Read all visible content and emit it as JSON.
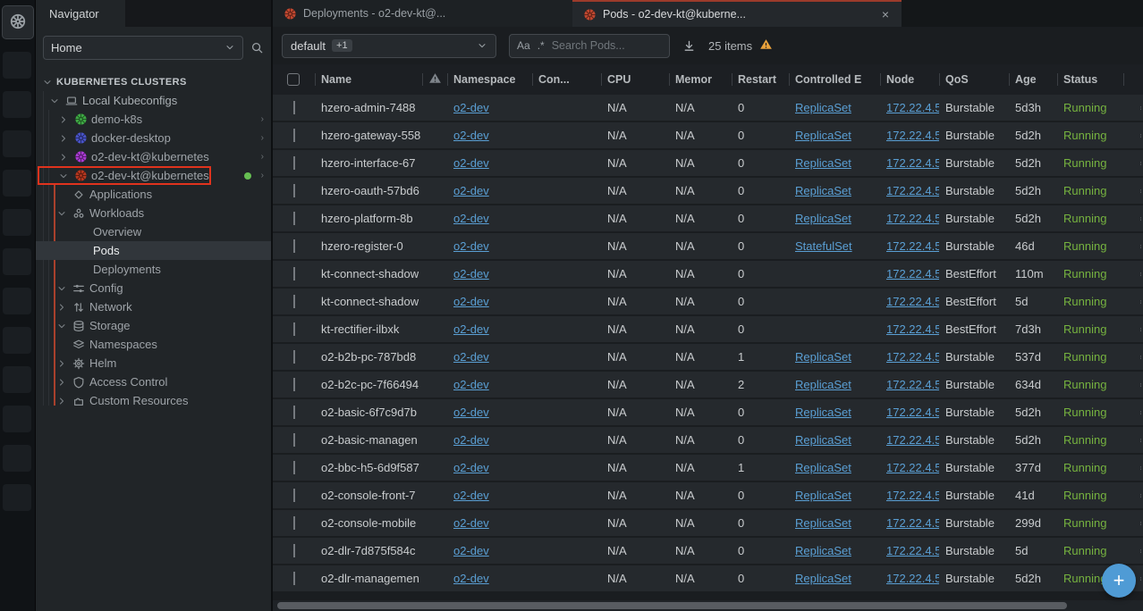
{
  "hotbar": {
    "active_item_icon": "kubernetes-logo",
    "slot_count": 12
  },
  "sidebar": {
    "tab_label": "Navigator",
    "home_select_value": "Home",
    "tree": [
      {
        "level": 0,
        "chevron": "down",
        "icon": "",
        "label": "KUBERNETES CLUSTERS"
      },
      {
        "level": 1,
        "chevron": "down",
        "icon": "laptop-icon",
        "label": "Local Kubeconfigs"
      },
      {
        "level": 2,
        "chevron": "right",
        "icon": "kubernetes-wheel-icon",
        "icon_color": "#3ea844",
        "label": "demo-k8s",
        "trailing_chevron": true
      },
      {
        "level": 2,
        "chevron": "right",
        "icon": "kubernetes-wheel-icon",
        "icon_color": "#4853c6",
        "label": "docker-desktop",
        "trailing_chevron": true
      },
      {
        "level": 2,
        "chevron": "right",
        "icon": "kubernetes-wheel-icon",
        "icon_color": "#a93ad2",
        "label": "o2-dev-kt@kubernetes",
        "trailing_chevron": true
      },
      {
        "level": 2,
        "chevron": "down",
        "icon": "kubernetes-wheel-icon",
        "icon_color": "#b5371f",
        "label": "o2-dev-kt@kubernetes",
        "boxed": true,
        "status_dot": true,
        "trailing_chevron": true
      },
      {
        "level": 3,
        "chevron": "",
        "icon": "applications-icon",
        "label": "Applications"
      },
      {
        "level": 3,
        "chevron": "down",
        "icon": "workloads-icon",
        "label": "Workloads"
      },
      {
        "level": 4,
        "chevron": "",
        "icon": "",
        "label": "Overview"
      },
      {
        "level": 4,
        "chevron": "",
        "icon": "",
        "label": "Pods",
        "selected": true
      },
      {
        "level": 4,
        "chevron": "",
        "icon": "",
        "label": "Deployments"
      },
      {
        "level": 3,
        "chevron": "down",
        "icon": "config-icon",
        "label": "Config"
      },
      {
        "level": 3,
        "chevron": "right",
        "icon": "network-icon",
        "label": "Network"
      },
      {
        "level": 3,
        "chevron": "down",
        "icon": "storage-icon",
        "label": "Storage"
      },
      {
        "level": 3,
        "chevron": "",
        "icon": "namespaces-icon",
        "label": "Namespaces"
      },
      {
        "level": 3,
        "chevron": "right",
        "icon": "helm-icon",
        "label": "Helm"
      },
      {
        "level": 3,
        "chevron": "right",
        "icon": "shield-icon",
        "label": "Access Control"
      },
      {
        "level": 3,
        "chevron": "right",
        "icon": "puzzle-icon",
        "label": "Custom Resources"
      }
    ]
  },
  "main": {
    "tabs": [
      {
        "label": "Deployments - o2-dev-kt@...",
        "icon": "kubernetes-logo",
        "active": false
      },
      {
        "label": "Pods - o2-dev-kt@kuberne...",
        "icon": "kubernetes-logo",
        "active": true,
        "close_label": "×"
      }
    ],
    "toolbar": {
      "namespace_value": "default",
      "namespace_badge": "+1",
      "match_case_icon": "Aa",
      "regex_icon": ".*",
      "search_placeholder": "Search Pods...",
      "items_count": "25 items"
    },
    "table": {
      "headers": [
        "",
        "Name",
        "warning-icon",
        "Namespace",
        "Con...",
        "CPU",
        "Memor",
        "Restart",
        "Controlled E",
        "Node",
        "QoS",
        "Age",
        "Status",
        "dots-icon"
      ],
      "rows": [
        {
          "name": "hzero-admin-7488",
          "namespace": "o2-dev",
          "containers": "running",
          "cpu": "N/A",
          "memory": "N/A",
          "restarts": "0",
          "controlled_by": "ReplicaSet",
          "node": "172.22.4.5",
          "qos": "Burstable",
          "age": "5d3h",
          "status": "Running"
        },
        {
          "name": "hzero-gateway-558",
          "namespace": "o2-dev",
          "containers": "running",
          "cpu": "N/A",
          "memory": "N/A",
          "restarts": "0",
          "controlled_by": "ReplicaSet",
          "node": "172.22.4.5",
          "qos": "Burstable",
          "age": "5d2h",
          "status": "Running"
        },
        {
          "name": "hzero-interface-67",
          "namespace": "o2-dev",
          "containers": "running",
          "cpu": "N/A",
          "memory": "N/A",
          "restarts": "0",
          "controlled_by": "ReplicaSet",
          "node": "172.22.4.5",
          "qos": "Burstable",
          "age": "5d2h",
          "status": "Running"
        },
        {
          "name": "hzero-oauth-57bd6",
          "namespace": "o2-dev",
          "containers": "running",
          "cpu": "N/A",
          "memory": "N/A",
          "restarts": "0",
          "controlled_by": "ReplicaSet",
          "node": "172.22.4.5",
          "qos": "Burstable",
          "age": "5d2h",
          "status": "Running"
        },
        {
          "name": "hzero-platform-8b",
          "namespace": "o2-dev",
          "containers": "running",
          "cpu": "N/A",
          "memory": "N/A",
          "restarts": "0",
          "controlled_by": "ReplicaSet",
          "node": "172.22.4.5",
          "qos": "Burstable",
          "age": "5d2h",
          "status": "Running"
        },
        {
          "name": "hzero-register-0",
          "namespace": "o2-dev",
          "containers": "running",
          "cpu": "N/A",
          "memory": "N/A",
          "restarts": "0",
          "controlled_by": "StatefulSet",
          "node": "172.22.4.5",
          "qos": "Burstable",
          "age": "46d",
          "status": "Running"
        },
        {
          "name": "kt-connect-shadow",
          "namespace": "o2-dev",
          "containers": "running",
          "cpu": "N/A",
          "memory": "N/A",
          "restarts": "0",
          "controlled_by": "",
          "node": "172.22.4.5",
          "qos": "BestEffort",
          "age": "110m",
          "status": "Running"
        },
        {
          "name": "kt-connect-shadow",
          "namespace": "o2-dev",
          "containers": "running",
          "cpu": "N/A",
          "memory": "N/A",
          "restarts": "0",
          "controlled_by": "",
          "node": "172.22.4.5",
          "qos": "BestEffort",
          "age": "5d",
          "status": "Running"
        },
        {
          "name": "kt-rectifier-ilbxk",
          "namespace": "o2-dev",
          "containers": "running",
          "cpu": "N/A",
          "memory": "N/A",
          "restarts": "0",
          "controlled_by": "",
          "node": "172.22.4.5",
          "qos": "BestEffort",
          "age": "7d3h",
          "status": "Running"
        },
        {
          "name": "o2-b2b-pc-787bd8",
          "namespace": "o2-dev",
          "containers": "running",
          "cpu": "N/A",
          "memory": "N/A",
          "restarts": "1",
          "controlled_by": "ReplicaSet",
          "node": "172.22.4.5",
          "qos": "Burstable",
          "age": "537d",
          "status": "Running"
        },
        {
          "name": "o2-b2c-pc-7f66494",
          "namespace": "o2-dev",
          "containers": "running",
          "cpu": "N/A",
          "memory": "N/A",
          "restarts": "2",
          "controlled_by": "ReplicaSet",
          "node": "172.22.4.5",
          "qos": "Burstable",
          "age": "634d",
          "status": "Running"
        },
        {
          "name": "o2-basic-6f7c9d7b",
          "namespace": "o2-dev",
          "containers": "running",
          "cpu": "N/A",
          "memory": "N/A",
          "restarts": "0",
          "controlled_by": "ReplicaSet",
          "node": "172.22.4.5",
          "qos": "Burstable",
          "age": "5d2h",
          "status": "Running"
        },
        {
          "name": "o2-basic-managen",
          "namespace": "o2-dev",
          "containers": "running",
          "cpu": "N/A",
          "memory": "N/A",
          "restarts": "0",
          "controlled_by": "ReplicaSet",
          "node": "172.22.4.5",
          "qos": "Burstable",
          "age": "5d2h",
          "status": "Running"
        },
        {
          "name": "o2-bbc-h5-6d9f587",
          "namespace": "o2-dev",
          "containers": "running",
          "cpu": "N/A",
          "memory": "N/A",
          "restarts": "1",
          "controlled_by": "ReplicaSet",
          "node": "172.22.4.5",
          "qos": "Burstable",
          "age": "377d",
          "status": "Running"
        },
        {
          "name": "o2-console-front-7",
          "namespace": "o2-dev",
          "containers": "running",
          "cpu": "N/A",
          "memory": "N/A",
          "restarts": "0",
          "controlled_by": "ReplicaSet",
          "node": "172.22.4.5",
          "qos": "Burstable",
          "age": "41d",
          "status": "Running"
        },
        {
          "name": "o2-console-mobile",
          "namespace": "o2-dev",
          "containers": "running",
          "cpu": "N/A",
          "memory": "N/A",
          "restarts": "0",
          "controlled_by": "ReplicaSet",
          "node": "172.22.4.5",
          "qos": "Burstable",
          "age": "299d",
          "status": "Running"
        },
        {
          "name": "o2-dlr-7d875f584c",
          "namespace": "o2-dev",
          "containers": "running",
          "cpu": "N/A",
          "memory": "N/A",
          "restarts": "0",
          "controlled_by": "ReplicaSet",
          "node": "172.22.4.5",
          "qos": "Burstable",
          "age": "5d",
          "status": "Running"
        },
        {
          "name": "o2-dlr-managemen",
          "namespace": "o2-dev",
          "containers": "running",
          "cpu": "N/A",
          "memory": "N/A",
          "restarts": "0",
          "controlled_by": "ReplicaSet",
          "node": "172.22.4.5",
          "qos": "Burstable",
          "age": "5d2h",
          "status": "Running"
        }
      ]
    },
    "fab_label": "+"
  },
  "colors": {
    "tab_accent_red": "#9c3b2b",
    "kubernetes_icon_red": "#bf4730",
    "annotation_red": "#e0331d",
    "link_blue": "#5a9fd4",
    "status_green": "#76b33f",
    "container_green": "#5fb357",
    "fab_blue": "#4f9bd5",
    "warning_orange": "#e9a13b",
    "active_dot_green": "#66bf52"
  }
}
